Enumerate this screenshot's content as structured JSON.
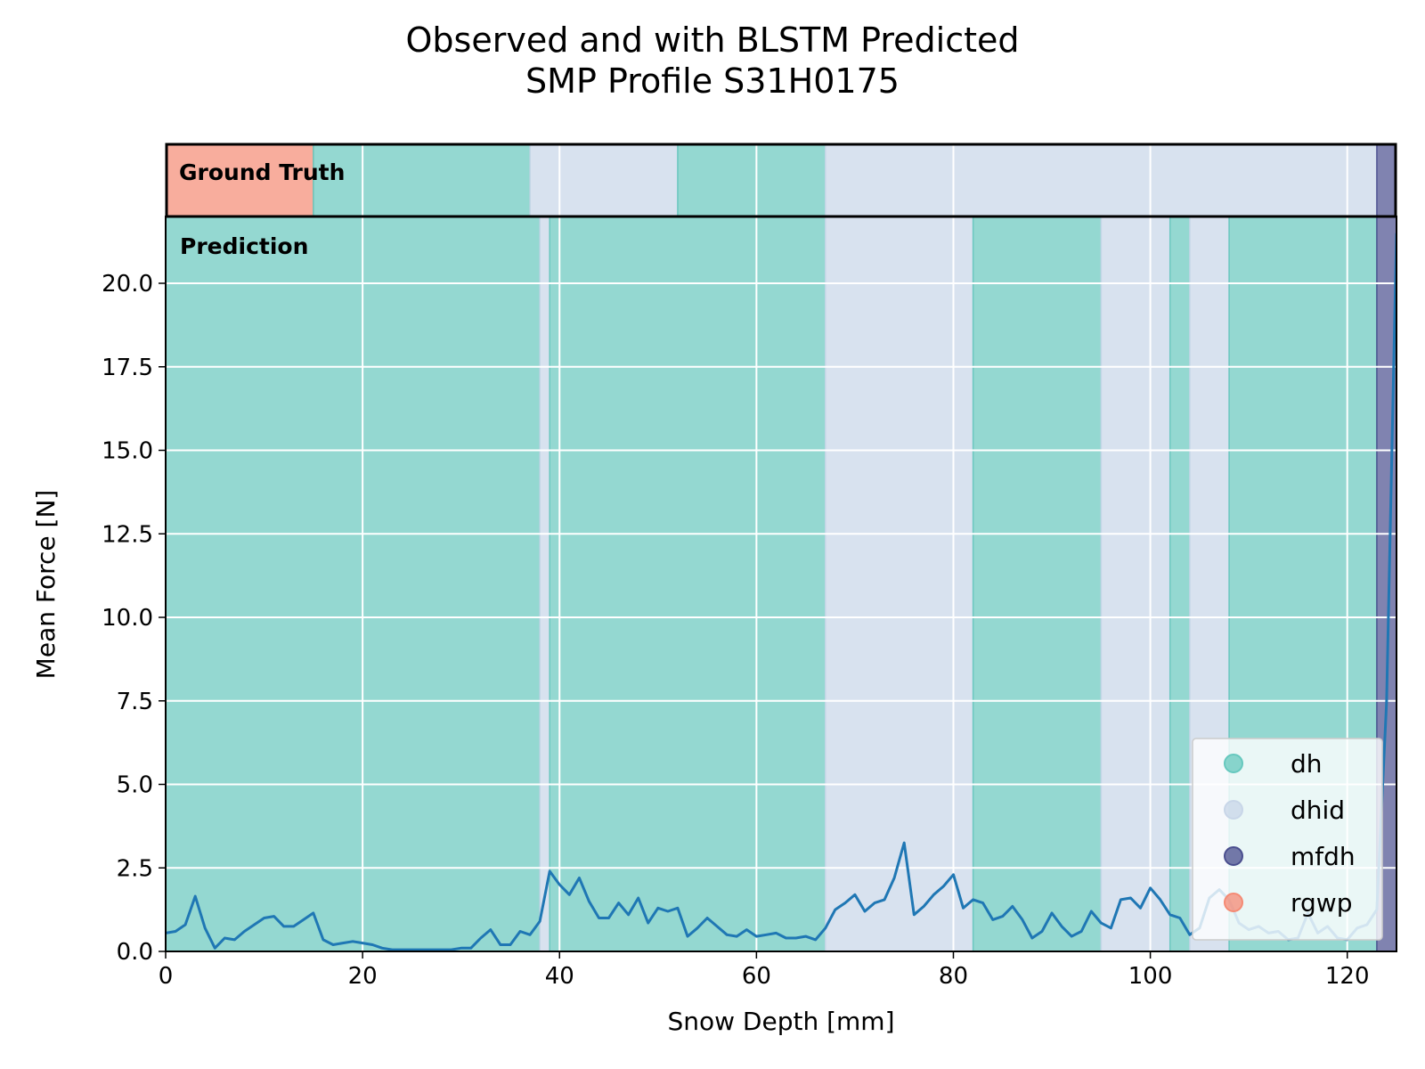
{
  "chart_data": {
    "type": "line",
    "title_line1": "Observed and with BLSTM Predicted",
    "title_line2": "SMP Profile S31H0175",
    "xlabel": "Snow Depth [mm]",
    "ylabel": "Mean Force [N]",
    "xlim": [
      0,
      125
    ],
    "ylim": [
      0,
      22
    ],
    "xticks": [
      0,
      20,
      40,
      60,
      80,
      100,
      120
    ],
    "xtick_labels": [
      "0",
      "20",
      "40",
      "60",
      "80",
      "100",
      "120"
    ],
    "yticks": [
      0,
      2.5,
      5,
      7.5,
      10,
      12.5,
      15,
      17.5,
      20
    ],
    "ytick_labels": [
      "0.0",
      "2.5",
      "5.0",
      "7.5",
      "10.0",
      "12.5",
      "15.0",
      "17.5",
      "20.0"
    ],
    "grid": true,
    "legend_position": "lower-right",
    "ground_truth_label": "Ground Truth",
    "prediction_label": "Prediction",
    "classes": [
      {
        "name": "dh",
        "color": "#66c8be"
      },
      {
        "name": "dhid",
        "color": "#c8d6e8"
      },
      {
        "name": "mfdh",
        "color": "#4a4e8e"
      },
      {
        "name": "rgwp",
        "color": "#f58a74"
      }
    ],
    "ground_truth": [
      {
        "start": 0,
        "end": 15,
        "class": "rgwp"
      },
      {
        "start": 15,
        "end": 37,
        "class": "dh"
      },
      {
        "start": 37,
        "end": 52,
        "class": "dhid"
      },
      {
        "start": 52,
        "end": 67,
        "class": "dh"
      },
      {
        "start": 67,
        "end": 123,
        "class": "dhid"
      },
      {
        "start": 123,
        "end": 125,
        "class": "mfdh"
      }
    ],
    "prediction": [
      {
        "start": 0,
        "end": 38,
        "class": "dh"
      },
      {
        "start": 38,
        "end": 39,
        "class": "dhid"
      },
      {
        "start": 39,
        "end": 67,
        "class": "dh"
      },
      {
        "start": 67,
        "end": 82,
        "class": "dhid"
      },
      {
        "start": 82,
        "end": 95,
        "class": "dh"
      },
      {
        "start": 95,
        "end": 102,
        "class": "dhid"
      },
      {
        "start": 102,
        "end": 104,
        "class": "dh"
      },
      {
        "start": 104,
        "end": 108,
        "class": "dhid"
      },
      {
        "start": 108,
        "end": 123,
        "class": "dh"
      },
      {
        "start": 123,
        "end": 125,
        "class": "mfdh"
      }
    ],
    "series": [
      {
        "x": [
          0,
          1,
          2,
          3,
          4,
          5,
          6,
          7,
          8,
          9,
          10,
          11,
          12,
          13,
          14,
          15,
          16,
          17,
          18,
          19,
          20,
          21,
          22,
          23,
          24,
          25,
          26,
          27,
          28,
          29,
          30,
          31,
          32,
          33,
          34,
          35,
          36,
          37,
          38,
          39,
          40,
          41,
          42,
          43,
          44,
          45,
          46,
          47,
          48,
          49,
          50,
          51,
          52,
          53,
          54,
          55,
          56,
          57,
          58,
          59,
          60,
          61,
          62,
          63,
          64,
          65,
          66,
          67,
          68,
          69,
          70,
          71,
          72,
          73,
          74,
          75,
          76,
          77,
          78,
          79,
          80,
          81,
          82,
          83,
          84,
          85,
          86,
          87,
          88,
          89,
          90,
          91,
          92,
          93,
          94,
          95,
          96,
          97,
          98,
          99,
          100,
          101,
          102,
          103,
          104,
          105,
          106,
          107,
          108,
          109,
          110,
          111,
          112,
          113,
          114,
          115,
          116,
          117,
          118,
          119,
          120,
          121,
          122,
          123,
          124,
          125
        ],
        "values": [
          0.55,
          0.6,
          0.8,
          1.65,
          0.7,
          0.1,
          0.4,
          0.35,
          0.6,
          0.8,
          1.0,
          1.05,
          0.75,
          0.75,
          0.95,
          1.15,
          0.35,
          0.2,
          0.25,
          0.3,
          0.25,
          0.2,
          0.1,
          0.05,
          0.05,
          0.05,
          0.05,
          0.05,
          0.05,
          0.05,
          0.1,
          0.1,
          0.4,
          0.65,
          0.2,
          0.2,
          0.6,
          0.5,
          0.9,
          2.4,
          2.0,
          1.7,
          2.2,
          1.5,
          1.0,
          1.0,
          1.45,
          1.1,
          1.6,
          0.85,
          1.3,
          1.2,
          1.3,
          0.45,
          0.7,
          1.0,
          0.75,
          0.5,
          0.45,
          0.65,
          0.45,
          0.5,
          0.55,
          0.4,
          0.4,
          0.45,
          0.35,
          0.7,
          1.25,
          1.45,
          1.7,
          1.2,
          1.45,
          1.55,
          2.2,
          3.25,
          1.1,
          1.35,
          1.7,
          1.95,
          2.3,
          1.3,
          1.55,
          1.45,
          0.95,
          1.05,
          1.35,
          0.95,
          0.4,
          0.6,
          1.15,
          0.75,
          0.45,
          0.6,
          1.2,
          0.85,
          0.7,
          1.55,
          1.6,
          1.3,
          1.9,
          1.55,
          1.1,
          1.0,
          0.5,
          0.7,
          1.6,
          1.85,
          1.55,
          0.85,
          0.65,
          0.75,
          0.55,
          0.6,
          0.35,
          0.4,
          1.15,
          0.55,
          0.75,
          0.4,
          0.35,
          0.7,
          0.8,
          1.25,
          7.5,
          21.5
        ]
      }
    ]
  }
}
